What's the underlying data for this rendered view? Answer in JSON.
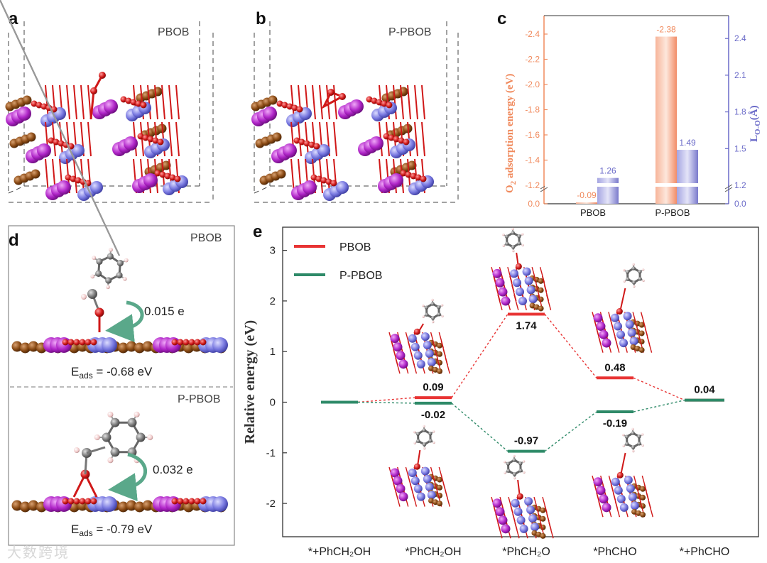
{
  "panels": {
    "a": {
      "letter": "a",
      "label": "PBOB"
    },
    "b": {
      "letter": "b",
      "label": "P-PBOB"
    },
    "c": {
      "letter": "c"
    },
    "d": {
      "letter": "d",
      "top_label": "PBOB",
      "top_charge": "0.015 e",
      "top_eads": "E",
      "top_eads_sub": "ads",
      "top_eads_val": " = -0.68 eV",
      "bottom_label": "P-PBOB",
      "bottom_charge": "0.032 e",
      "bottom_eads": "E",
      "bottom_eads_sub": "ads",
      "bottom_eads_val": " = -0.79 eV"
    },
    "e": {
      "letter": "e"
    }
  },
  "watermark": "大数跨境",
  "colors": {
    "pbob": "#e83434",
    "ppbob": "#2e8a68",
    "bar_orange": "#f5a07f",
    "bar_purple": "#8f8fd6"
  },
  "chart_data": [
    {
      "type": "bar",
      "panel": "c",
      "categories": [
        "PBOB",
        "P-PBOB"
      ],
      "series": [
        {
          "name": "O2 adsorption energy",
          "values": [
            -0.09,
            -2.38
          ],
          "labels": [
            "-0.09",
            "-2.38"
          ],
          "axis": "left"
        },
        {
          "name": "LO-O",
          "values": [
            1.26,
            1.49
          ],
          "labels": [
            "1.26",
            "1.49"
          ],
          "axis": "right"
        }
      ],
      "ylabel_left": "O2 adsorption energy (eV)",
      "ylabel_left_parts": [
        "O",
        "2",
        " adsorption energy (eV)"
      ],
      "ylabel_right_parts": [
        "L",
        "O-O",
        "(Å)"
      ],
      "ylim_left": [
        0,
        -2.55
      ],
      "left_ticks": [
        "0.0",
        "-1.2",
        "-1.4",
        "-1.6",
        "-1.8",
        "-2.0",
        "-2.2",
        "-2.4"
      ],
      "right_ticks": [
        "0.0",
        "1.2",
        "1.5",
        "1.8",
        "2.1",
        "2.4"
      ],
      "axis_break": true
    },
    {
      "type": "line",
      "panel": "e",
      "categories": [
        "*+PhCH₂OH",
        "*PhCH₂OH",
        "*PhCH₂O",
        "*PhCHO",
        "*+PhCHO"
      ],
      "series": [
        {
          "name": "PBOB",
          "values": [
            0,
            0.09,
            1.74,
            0.48,
            0.04
          ],
          "labels": [
            "",
            "0.09",
            "1.74",
            "0.48",
            "0.04"
          ]
        },
        {
          "name": "P-PBOB",
          "values": [
            0,
            -0.02,
            -0.97,
            -0.19,
            0.04
          ],
          "labels": [
            "",
            "-0.02",
            "-0.97",
            "-0.19",
            ""
          ]
        }
      ],
      "ylabel": "Relative energy (eV)",
      "ylim": [
        -2.6,
        3.4
      ],
      "yticks": [
        "-2",
        "-1",
        "0",
        "1",
        "2",
        "3"
      ],
      "legend": "top-left"
    }
  ]
}
